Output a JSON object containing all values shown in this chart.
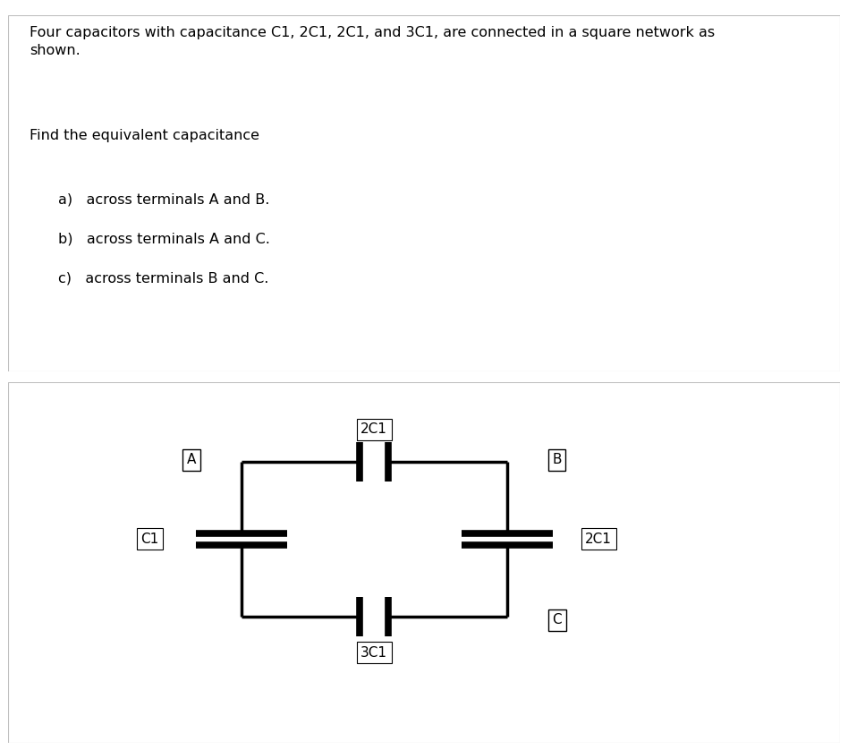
{
  "title_text": "Four capacitors with capacitance C1, 2C1, 2C1, and 3C1, are connected in a square network as\nshown.",
  "subtitle_text": "Find the equivalent capacitance",
  "items": [
    "a)   across terminals A and B.",
    "b)   across terminals A and C.",
    "c)   across terminals B and C."
  ],
  "bg_color": "#ffffff",
  "text_color": "#000000",
  "border_color": "#c0c0c0",
  "wire_color": "#000000",
  "cap_label_2C1_top": "2C1",
  "cap_label_C1": "C1",
  "cap_label_2C1_right": "2C1",
  "cap_label_3C1": "3C1",
  "node_A": "A",
  "node_B": "B",
  "node_C": "C",
  "lw": 2.5,
  "cap_lw": 5.5,
  "font_size_title": 11.5,
  "font_size_subtitle": 11.5,
  "font_size_items": 11.5,
  "font_size_label": 11,
  "font_size_node": 11
}
